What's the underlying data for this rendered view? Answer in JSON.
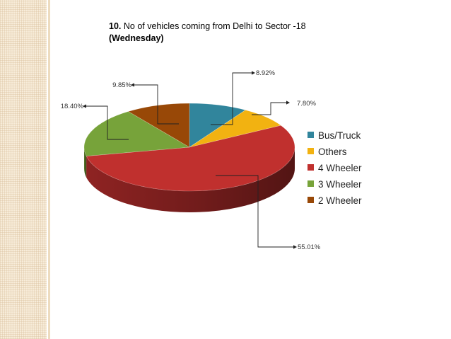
{
  "title": {
    "number": "10.",
    "text": " No of vehicles coming from Delhi to Sector -18",
    "line2": "(Wednesday)"
  },
  "chart_data": {
    "type": "pie",
    "title": "10. No of vehicles coming from Delhi to Sector -18 (Wednesday)",
    "legend_position": "right",
    "slices": [
      {
        "name": "Bus/Truck",
        "value": 8.92,
        "label": "8.92%",
        "color": "#31859c"
      },
      {
        "name": "Others",
        "value": 7.8,
        "label": "7.80%",
        "color": "#f2b211"
      },
      {
        "name": "4 Wheeler",
        "value": 55.01,
        "label": "55.01%",
        "color": "#c0302e"
      },
      {
        "name": "3 Wheeler",
        "value": 18.4,
        "label": "18.40%",
        "color": "#77a33a"
      },
      {
        "name": "2 Wheeler",
        "value": 9.85,
        "label": "9.85%",
        "color": "#984807"
      }
    ]
  }
}
